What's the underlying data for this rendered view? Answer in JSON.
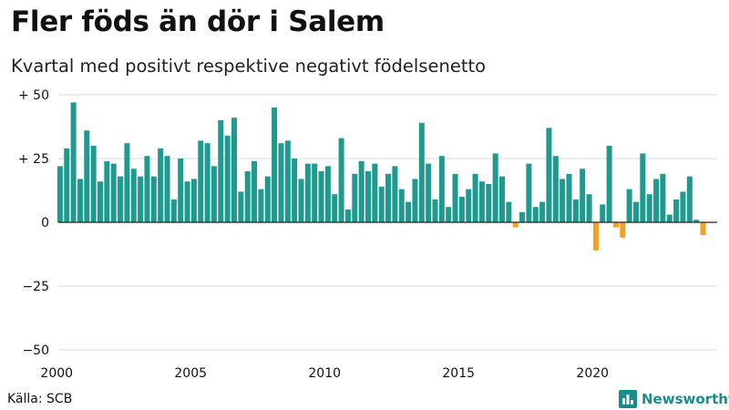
{
  "title": "Fler föds än dör i Salem",
  "subtitle": "Kvartal med positivt respektive negativt födelsenetto",
  "source": "Källa: SCB",
  "brand": {
    "name": "Newsworthy",
    "icon": "bar-chart-logo-icon"
  },
  "colors": {
    "positive": "#1e9a8f",
    "negative": "#f2a024",
    "grid": "#d9d9d9",
    "zero": "#222222",
    "brand": "#1a8c8c"
  },
  "chart_data": {
    "type": "bar",
    "title": "Fler föds än dör i Salem",
    "subtitle": "Kvartal med positivt respektive negativt födelsenetto",
    "x_start": "2000 Q1",
    "period": "quarter",
    "xtick_labels": [
      "2000",
      "2005",
      "2010",
      "2015",
      "2020"
    ],
    "ytick_labels": [
      "+ 50",
      "+ 25",
      "0",
      "−25",
      "−50"
    ],
    "ytick_values": [
      50,
      25,
      0,
      -25,
      -50
    ],
    "ylim": [
      -50,
      50
    ],
    "grid": true,
    "values": [
      22,
      29,
      47,
      17,
      36,
      30,
      16,
      24,
      23,
      18,
      31,
      21,
      18,
      26,
      18,
      29,
      26,
      9,
      25,
      16,
      17,
      32,
      31,
      22,
      40,
      34,
      41,
      12,
      20,
      24,
      13,
      18,
      45,
      31,
      32,
      25,
      17,
      23,
      23,
      20,
      22,
      11,
      33,
      5,
      19,
      24,
      20,
      23,
      14,
      19,
      22,
      13,
      8,
      17,
      39,
      23,
      9,
      26,
      6,
      19,
      10,
      13,
      19,
      16,
      15,
      27,
      18,
      8,
      -2,
      4,
      23,
      6,
      8,
      37,
      26,
      17,
      19,
      9,
      21,
      11,
      -11,
      7,
      30,
      -2,
      -6,
      13,
      8,
      27,
      11,
      17,
      19,
      3,
      9,
      12,
      18,
      1,
      -5
    ]
  }
}
